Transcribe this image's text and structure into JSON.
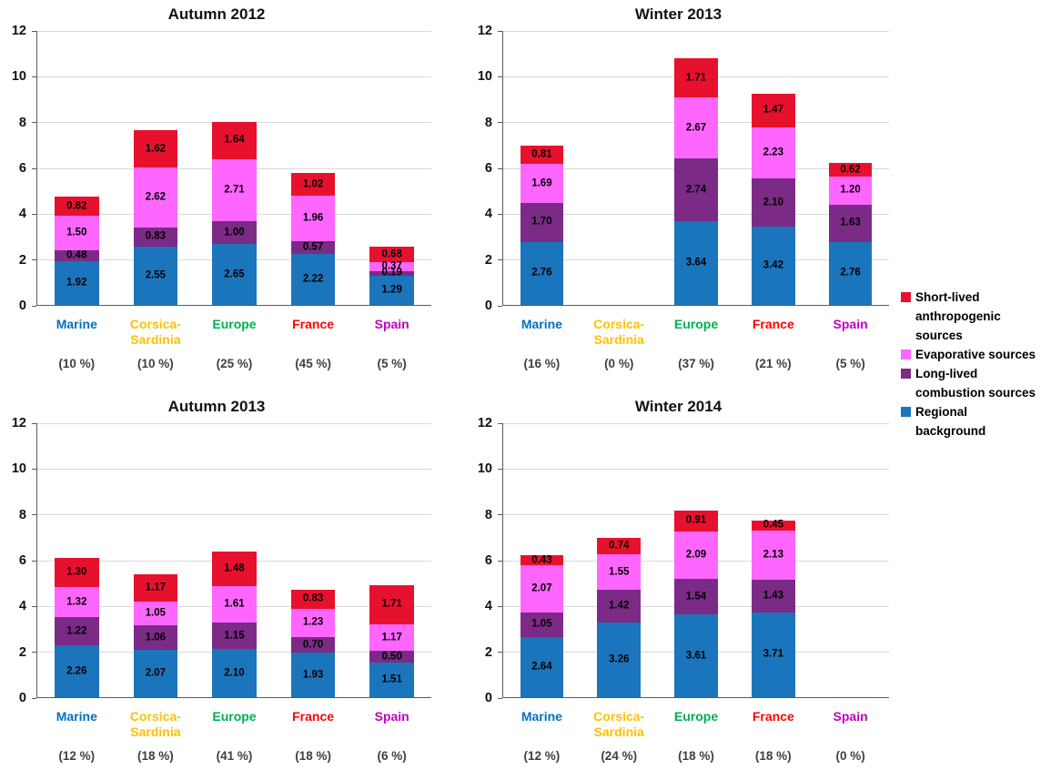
{
  "page": {
    "background": "#ffffff"
  },
  "category_colors": [
    "#0070C0",
    "#FFC000",
    "#00B050",
    "#FF0000",
    "#C000C0"
  ],
  "legend": {
    "position": "right",
    "items": [
      {
        "label": "Short-lived anthropogenic sources",
        "color": "#E8112D"
      },
      {
        "label": "Evaporative sources",
        "color": "#FF66FF"
      },
      {
        "label": "Long-lived combustion sources",
        "color": "#7B2A86"
      },
      {
        "label": "Regional background",
        "color": "#1B75BC"
      }
    ]
  },
  "chart_data": [
    {
      "type": "bar",
      "stacked": true,
      "title": "Autumn 2012",
      "ylim": [
        0,
        12
      ],
      "ytick_step": 2,
      "grid": true,
      "categories": [
        {
          "label": "Marine",
          "pct": "(10 %)"
        },
        {
          "label": "Corsica-\nSardinia",
          "pct": "(10 %)"
        },
        {
          "label": "Europe",
          "pct": "(25 %)"
        },
        {
          "label": "France",
          "pct": "(45 %)"
        },
        {
          "label": "Spain",
          "pct": "(5 %)"
        }
      ],
      "series": [
        {
          "name": "Regional background",
          "color": "#1B75BC",
          "values": [
            1.92,
            2.55,
            2.65,
            2.22,
            1.29
          ]
        },
        {
          "name": "Long-lived combustion sources",
          "color": "#7B2A86",
          "values": [
            0.48,
            0.83,
            1.0,
            0.57,
            0.19
          ]
        },
        {
          "name": "Evaporative sources",
          "color": "#FF66FF",
          "values": [
            1.5,
            2.62,
            2.71,
            1.96,
            0.37
          ]
        },
        {
          "name": "Short-lived anthropogenic sources",
          "color": "#E8112D",
          "values": [
            0.82,
            1.62,
            1.64,
            1.02,
            0.68
          ]
        }
      ]
    },
    {
      "type": "bar",
      "stacked": true,
      "title": "Winter 2013",
      "ylim": [
        0,
        12
      ],
      "ytick_step": 2,
      "grid": true,
      "categories": [
        {
          "label": "Marine",
          "pct": "(16 %)"
        },
        {
          "label": "Corsica-\nSardinia",
          "pct": "(0 %)"
        },
        {
          "label": "Europe",
          "pct": "(37 %)"
        },
        {
          "label": "France",
          "pct": "(21 %)"
        },
        {
          "label": "Spain",
          "pct": "(5 %)"
        }
      ],
      "series": [
        {
          "name": "Regional background",
          "color": "#1B75BC",
          "values": [
            2.76,
            0,
            3.64,
            3.42,
            2.76
          ]
        },
        {
          "name": "Long-lived combustion sources",
          "color": "#7B2A86",
          "values": [
            1.7,
            0,
            2.74,
            2.1,
            1.63
          ]
        },
        {
          "name": "Evaporative sources",
          "color": "#FF66FF",
          "values": [
            1.69,
            0,
            2.67,
            2.23,
            1.2
          ]
        },
        {
          "name": "Short-lived anthropogenic sources",
          "color": "#E8112D",
          "values": [
            0.81,
            0,
            1.71,
            1.47,
            0.62
          ]
        }
      ]
    },
    {
      "type": "bar",
      "stacked": true,
      "title": "Autumn 2013",
      "ylim": [
        0,
        12
      ],
      "ytick_step": 2,
      "grid": true,
      "categories": [
        {
          "label": "Marine",
          "pct": "(12 %)"
        },
        {
          "label": "Corsica-\nSardinia",
          "pct": "(18 %)"
        },
        {
          "label": "Europe",
          "pct": "(41 %)"
        },
        {
          "label": "France",
          "pct": "(18 %)"
        },
        {
          "label": "Spain",
          "pct": "(6 %)"
        }
      ],
      "series": [
        {
          "name": "Regional background",
          "color": "#1B75BC",
          "values": [
            2.26,
            2.07,
            2.1,
            1.93,
            1.51
          ]
        },
        {
          "name": "Long-lived combustion sources",
          "color": "#7B2A86",
          "values": [
            1.22,
            1.06,
            1.15,
            0.7,
            0.5
          ]
        },
        {
          "name": "Evaporative sources",
          "color": "#FF66FF",
          "values": [
            1.32,
            1.05,
            1.61,
            1.23,
            1.17
          ]
        },
        {
          "name": "Short-lived anthropogenic sources",
          "color": "#E8112D",
          "values": [
            1.3,
            1.17,
            1.48,
            0.83,
            1.71
          ]
        }
      ]
    },
    {
      "type": "bar",
      "stacked": true,
      "title": "Winter 2014",
      "ylim": [
        0,
        12
      ],
      "ytick_step": 2,
      "grid": true,
      "categories": [
        {
          "label": "Marine",
          "pct": "(12 %)"
        },
        {
          "label": "Corsica-\nSardinia",
          "pct": "(24 %)"
        },
        {
          "label": "Europe",
          "pct": "(18 %)"
        },
        {
          "label": "France",
          "pct": "(18 %)"
        },
        {
          "label": "Spain",
          "pct": "(0 %)"
        }
      ],
      "series": [
        {
          "name": "Regional background",
          "color": "#1B75BC",
          "values": [
            2.64,
            3.26,
            3.61,
            3.71,
            0
          ]
        },
        {
          "name": "Long-lived combustion sources",
          "color": "#7B2A86",
          "values": [
            1.05,
            1.42,
            1.54,
            1.43,
            0
          ]
        },
        {
          "name": "Evaporative sources",
          "color": "#FF66FF",
          "values": [
            2.07,
            1.55,
            2.09,
            2.13,
            0
          ]
        },
        {
          "name": "Short-lived anthropogenic sources",
          "color": "#E8112D",
          "values": [
            0.43,
            0.74,
            0.91,
            0.45,
            0
          ]
        }
      ]
    }
  ]
}
